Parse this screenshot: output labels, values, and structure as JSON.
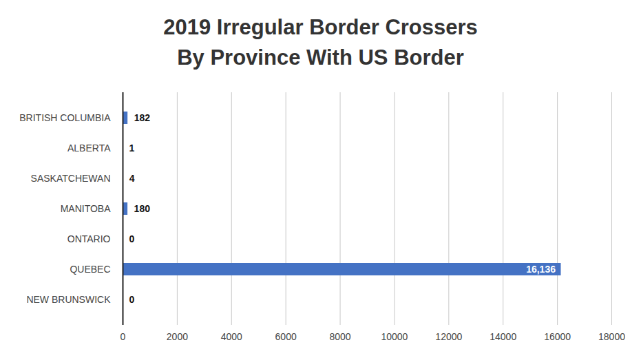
{
  "chart_data": {
    "type": "bar",
    "orientation": "horizontal",
    "title": "2019 Irregular Border Crossers\nBy Province With US Border",
    "categories": [
      "BRITISH COLUMBIA",
      "ALBERTA",
      "SASKATCHEWAN",
      "MANITOBA",
      "ONTARIO",
      "QUEBEC",
      "NEW BRUNSWICK"
    ],
    "values": [
      182,
      1,
      4,
      180,
      0,
      16136,
      0
    ],
    "value_labels": [
      "182",
      "1",
      "4",
      "180",
      "0",
      "16,136",
      "0"
    ],
    "color": "#4472c4",
    "xlim": [
      0,
      18000
    ],
    "xticks": [
      0,
      2000,
      4000,
      6000,
      8000,
      10000,
      12000,
      14000,
      16000,
      18000
    ],
    "grid": true,
    "data_labels": true
  }
}
